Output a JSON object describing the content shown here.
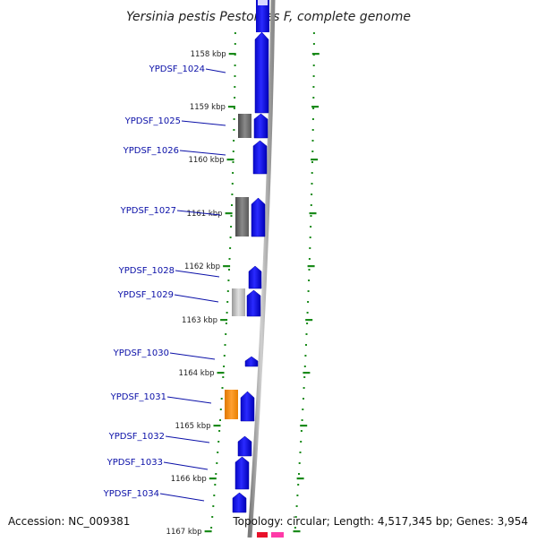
{
  "title": "Yersinia pestis Pestoides F, complete genome",
  "footer": {
    "accession": "Accession: NC_009381",
    "summary": "Topology: circular; Length: 4,517,345 bp; Genes: 3,954"
  },
  "ticks": [
    "1158 kbp",
    "1159 kbp",
    "1160 kbp",
    "1161 kbp",
    "1162 kbp",
    "1163 kbp",
    "1164 kbp",
    "1165 kbp",
    "1166 kbp",
    "1167 kbp"
  ],
  "genes": [
    "YPDSF_1024",
    "YPDSF_1025",
    "YPDSF_1026",
    "YPDSF_1027",
    "YPDSF_1028",
    "YPDSF_1029",
    "YPDSF_1030",
    "YPDSF_1031",
    "YPDSF_1032",
    "YPDSF_1033",
    "YPDSF_1034"
  ],
  "colors": {
    "gene_forward": "#1010ee",
    "feature_gray": "#6a6a6a",
    "feature_light_gray": "#b8b8b8",
    "feature_orange": "#f08a10",
    "dotted_track": "#1a8a1a",
    "label_blue": "#0b10a8",
    "backbone": "#888888"
  }
}
